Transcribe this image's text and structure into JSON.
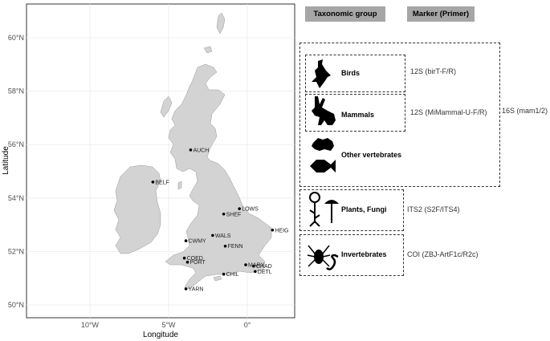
{
  "map": {
    "x_axis_title": "Longitude",
    "y_axis_title": "Latitude",
    "x_ticks": [
      {
        "lon": -10,
        "label": "10°W"
      },
      {
        "lon": -5,
        "label": "5°W"
      },
      {
        "lon": 0,
        "label": "0°"
      }
    ],
    "y_ticks": [
      {
        "lat": 50,
        "label": "50°N"
      },
      {
        "lat": 52,
        "label": "52°N"
      },
      {
        "lat": 54,
        "label": "54°N"
      },
      {
        "lat": 56,
        "label": "56°N"
      },
      {
        "lat": 58,
        "label": "58°N"
      },
      {
        "lat": 60,
        "label": "60°N"
      }
    ],
    "land_color": "#d3d3d3",
    "point_color": "#000000",
    "sites": [
      {
        "name": "AUCH",
        "lon": -3.6,
        "lat": 55.8
      },
      {
        "name": "BELF",
        "lon": -6.0,
        "lat": 54.6
      },
      {
        "name": "LOWS",
        "lon": -0.5,
        "lat": 53.6
      },
      {
        "name": "SHEF",
        "lon": -1.5,
        "lat": 53.4
      },
      {
        "name": "HEIG",
        "lon": 1.6,
        "lat": 52.8
      },
      {
        "name": "CWMY",
        "lon": -3.9,
        "lat": 52.4
      },
      {
        "name": "WALS",
        "lon": -2.2,
        "lat": 52.6
      },
      {
        "name": "FENN",
        "lon": -1.4,
        "lat": 52.2
      },
      {
        "name": "COED",
        "lon": -4.0,
        "lat": 51.75
      },
      {
        "name": "PORT",
        "lon": -3.8,
        "lat": 51.6
      },
      {
        "name": "MARY",
        "lon": -0.1,
        "lat": 51.5
      },
      {
        "name": "CHAD",
        "lon": 0.4,
        "lat": 51.45
      },
      {
        "name": "CHIL",
        "lon": -1.5,
        "lat": 51.15
      },
      {
        "name": "DETL",
        "lon": 0.5,
        "lat": 51.25
      },
      {
        "name": "YARN",
        "lon": -3.9,
        "lat": 50.6
      }
    ]
  },
  "legend": {
    "header_taxonomic": "Taxonomic group",
    "header_marker": "Marker (Primer)",
    "groups": {
      "birds": "Birds",
      "mammals": "Mammals",
      "other_vertebrates": "Other vertebrates",
      "plants_fungi": "Plants, Fungi",
      "invertebrates": "Invertebrates"
    },
    "markers": {
      "birds": "12S (birT-F/R)",
      "mammals": "12S (MiMammal-U-F/R)",
      "vertebrates": "16S (mam1/2)",
      "plants_fungi": "ITS2 (S2F/ITS4)",
      "invertebrates": "COI (ZBJ-ArtF1c/R2c)"
    },
    "icons": [
      "bird-icon",
      "hare-icon",
      "frog-icon",
      "fish-icon",
      "flower-icon",
      "mushroom-icon",
      "spider-icon",
      "worm-icon"
    ]
  }
}
